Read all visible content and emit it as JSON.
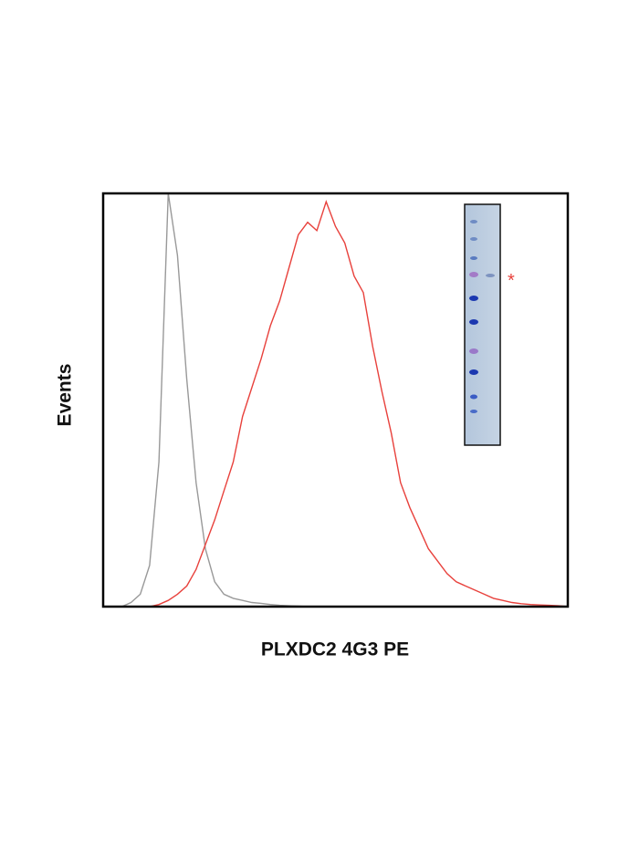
{
  "chart_data": {
    "type": "line",
    "x_label": "PLXDC2 4G3 PE",
    "y_label": "Events",
    "x": [
      4,
      6,
      8,
      10,
      12,
      14,
      16,
      18,
      20,
      22,
      24,
      26,
      28,
      30,
      32,
      34,
      36,
      38,
      40,
      42,
      44,
      46,
      48,
      50,
      52,
      54,
      56,
      58,
      60,
      62,
      64,
      66,
      68,
      70,
      72,
      74,
      76,
      78,
      80,
      82,
      84,
      86,
      88,
      90,
      92,
      94,
      96,
      98,
      100
    ],
    "series": [
      {
        "color": "#999999",
        "values": [
          0,
          1,
          3,
          10,
          35,
          100,
          85,
          55,
          30,
          14,
          6,
          3,
          2,
          1.5,
          1,
          0.8,
          0.5,
          0.3,
          0.2,
          0.1,
          0,
          0,
          0,
          0,
          0,
          0,
          0,
          0,
          0,
          0,
          0,
          0,
          0,
          0,
          0,
          0,
          0,
          0,
          0,
          0,
          0,
          0,
          0,
          0,
          0,
          0,
          0,
          0,
          0
        ]
      },
      {
        "color": "#e8413c",
        "values": [
          0,
          0,
          0,
          0,
          0.5,
          1.5,
          3,
          5,
          9,
          15,
          21,
          28,
          35,
          46,
          53,
          60,
          68,
          74,
          82,
          90,
          93,
          91,
          98,
          92,
          88,
          80,
          76,
          63,
          52,
          42,
          30,
          24,
          19,
          14,
          11,
          8,
          6,
          5,
          4,
          3,
          2,
          1.5,
          1,
          0.7,
          0.5,
          0.4,
          0.3,
          0.2,
          0
        ]
      }
    ],
    "xlim": [
      0,
      100
    ],
    "ylim": [
      0,
      100
    ],
    "inset_marker": "*"
  }
}
